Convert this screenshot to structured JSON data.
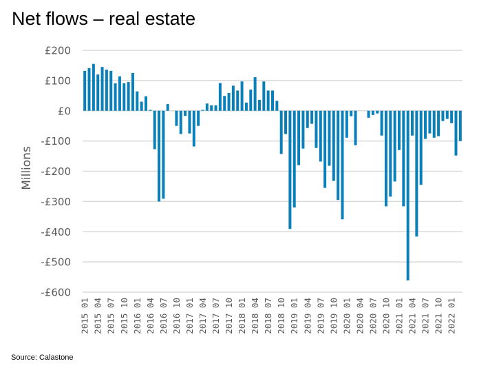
{
  "chart_data": {
    "type": "bar",
    "title": "Net flows – real estate",
    "xlabel": "",
    "ylabel": "Millions",
    "ylim": [
      -600,
      200
    ],
    "yticks": [
      200,
      100,
      0,
      -100,
      -200,
      -300,
      -400,
      -500,
      -600
    ],
    "ytick_labels": [
      "£200",
      "£100",
      "£0",
      "-£100",
      "-£200",
      "-£300",
      "-£400",
      "-£500",
      "-£600"
    ],
    "grid": true,
    "legend": "none",
    "bar_color": "#0a80ba",
    "grid_color": "#d9d9d9",
    "categories": [
      "2015 01",
      "2015 02",
      "2015 03",
      "2015 04",
      "2015 05",
      "2015 06",
      "2015 07",
      "2015 08",
      "2015 09",
      "2015 10",
      "2015 11",
      "2015 12",
      "2016 01",
      "2016 02",
      "2016 03",
      "2016 04",
      "2016 05",
      "2016 06",
      "2016 07",
      "2016 08",
      "2016 09",
      "2016 10",
      "2016 11",
      "2016 12",
      "2017 01",
      "2017 02",
      "2017 03",
      "2017 04",
      "2017 05",
      "2017 06",
      "2017 07",
      "2017 08",
      "2017 09",
      "2017 10",
      "2017 11",
      "2017 12",
      "2018 01",
      "2018 02",
      "2018 03",
      "2018 04",
      "2018 05",
      "2018 06",
      "2018 07",
      "2018 08",
      "2018 09",
      "2018 10",
      "2018 11",
      "2018 12",
      "2019 01",
      "2019 02",
      "2019 03",
      "2019 04",
      "2019 05",
      "2019 06",
      "2019 07",
      "2019 08",
      "2019 09",
      "2019 10",
      "2019 11",
      "2019 12",
      "2020 01",
      "2020 02",
      "2020 03",
      "2020 04",
      "2020 05",
      "2020 06",
      "2020 07",
      "2020 08",
      "2020 09",
      "2020 10",
      "2020 11",
      "2020 12",
      "2021 01",
      "2021 02",
      "2021 03",
      "2021 04",
      "2021 05",
      "2021 06",
      "2021 07",
      "2021 08",
      "2021 09",
      "2021 10",
      "2021 11",
      "2021 12",
      "2022 01",
      "2022 02",
      "2022 03"
    ],
    "xtick_labels": [
      "2015 01",
      "2015 04",
      "2015 07",
      "2015 10",
      "2016 01",
      "2016 04",
      "2016 07",
      "2016 10",
      "2017 01",
      "2017 04",
      "2017 07",
      "2017 10",
      "2018 01",
      "2018 04",
      "2018 07",
      "2018 10",
      "2019 01",
      "2019 04",
      "2019 07",
      "2019 10",
      "2020 01",
      "2020 04",
      "2020 07",
      "2020 10",
      "2021 01",
      "2021 04",
      "2021 07",
      "2021 10",
      "2022 01"
    ],
    "series": [
      {
        "name": "Net flows",
        "values": [
          132,
          141,
          155,
          120,
          145,
          136,
          132,
          91,
          114,
          91,
          95,
          125,
          64,
          30,
          48,
          3,
          -127,
          -300,
          -291,
          22,
          0,
          -50,
          -77,
          -17,
          -75,
          -118,
          -50,
          3,
          24,
          18,
          18,
          92,
          49,
          59,
          83,
          67,
          97,
          27,
          70,
          111,
          36,
          97,
          67,
          67,
          33,
          -143,
          -77,
          -391,
          -320,
          -180,
          -125,
          -57,
          -43,
          -123,
          -168,
          -255,
          -182,
          -232,
          -295,
          -359,
          -89,
          -18,
          -114,
          0,
          0,
          -23,
          -14,
          -9,
          -82,
          -316,
          -284,
          -234,
          -130,
          -316,
          -561,
          -82,
          -416,
          -245,
          -93,
          -75,
          -89,
          -84,
          -34,
          -27,
          -41,
          -148,
          -100
        ]
      }
    ],
    "source": "Source: Calastone"
  }
}
